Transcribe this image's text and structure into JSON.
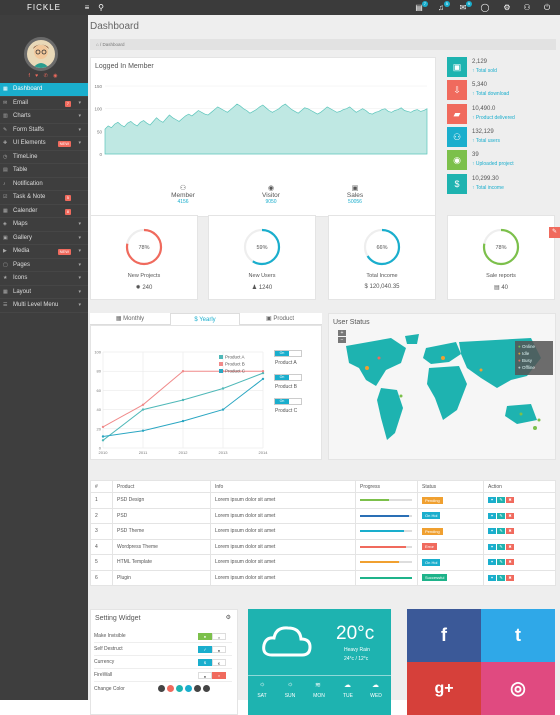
{
  "brand": "FICKLE",
  "topbar": {
    "badges": [
      "7",
      "5",
      "9"
    ]
  },
  "sidebar": {
    "items": [
      {
        "label": "Dashboard",
        "icon": "dashboard-icon",
        "active": true
      },
      {
        "label": "Email",
        "icon": "envelope-icon",
        "badge": "7",
        "arrow": true
      },
      {
        "label": "Charts",
        "icon": "bar-chart-icon",
        "arrow": true
      },
      {
        "label": "Form Staffs",
        "icon": "edit-icon",
        "arrow": true
      },
      {
        "label": "UI Elements",
        "icon": "puzzle-icon",
        "badge": "NEW",
        "arrow": true
      },
      {
        "label": "TimeLine",
        "icon": "timeline-icon"
      },
      {
        "label": "Table",
        "icon": "table-icon"
      },
      {
        "label": "Notification",
        "icon": "bell-icon"
      },
      {
        "label": "Task & Note",
        "icon": "tasks-icon",
        "badge": "5"
      },
      {
        "label": "Calender",
        "icon": "calendar-icon",
        "badge": "8"
      },
      {
        "label": "Maps",
        "icon": "map-icon",
        "arrow": true
      },
      {
        "label": "Gallery",
        "icon": "gallery-icon",
        "arrow": true
      },
      {
        "label": "Media",
        "icon": "media-icon",
        "badge": "NEW",
        "arrow": true
      },
      {
        "label": "Pages",
        "icon": "pages-icon",
        "arrow": true
      },
      {
        "label": "Icons",
        "icon": "icons-icon",
        "arrow": true
      },
      {
        "label": "Layout",
        "icon": "layout-icon",
        "arrow": true
      },
      {
        "label": "Multi Level Menu",
        "icon": "sitemap-icon",
        "arrow": true
      }
    ]
  },
  "page": {
    "title": "Dashboard",
    "breadcrumb": "Dashboard"
  },
  "logged_panel": {
    "title": "Logged In Member",
    "legend": [
      {
        "label": "Member",
        "value": "4156"
      },
      {
        "label": "Visitor",
        "value": "9050"
      },
      {
        "label": "Sales",
        "value": "50056"
      }
    ]
  },
  "chart_data": [
    {
      "type": "area",
      "title": "Logged In Member",
      "ylim": [
        0,
        150
      ],
      "yticks": [
        "150",
        "100",
        "50",
        "0"
      ],
      "values": [
        55,
        62,
        58,
        66,
        70,
        64,
        60,
        68,
        72,
        66,
        62,
        70,
        74,
        68,
        64,
        72,
        80,
        74,
        70,
        78,
        86,
        80,
        76,
        72,
        78,
        84,
        88,
        84,
        90,
        96,
        92,
        88,
        86,
        92,
        98,
        104,
        100,
        96,
        92,
        98,
        104,
        110,
        106,
        100,
        96,
        90,
        94,
        98,
        104,
        108,
        102,
        96,
        92,
        96,
        100,
        106,
        110,
        104,
        98,
        94,
        90,
        96,
        102,
        100,
        96,
        92,
        88,
        92,
        98,
        104,
        100,
        96,
        92,
        94,
        98,
        100,
        104,
        98,
        92,
        96,
        100,
        96,
        90,
        88,
        92,
        94,
        98,
        100,
        94,
        92,
        96,
        98,
        102,
        96,
        94,
        92,
        96,
        98,
        94,
        96,
        100
      ]
    },
    {
      "type": "line",
      "categories": [
        "2010",
        "2011",
        "2012",
        "2013",
        "2014"
      ],
      "ylim": [
        0,
        100
      ],
      "yticks": [
        "100",
        "80",
        "60",
        "40",
        "20",
        "0"
      ],
      "series": [
        {
          "name": "Product A",
          "color": "#4fb8b8",
          "values": [
            8,
            40,
            50,
            62,
            78
          ]
        },
        {
          "name": "Product B",
          "color": "#f08a8a",
          "values": [
            22,
            45,
            80,
            80,
            80
          ]
        },
        {
          "name": "Product C",
          "color": "#2aa6c2",
          "values": [
            12,
            18,
            28,
            40,
            72
          ]
        }
      ]
    }
  ],
  "stats": [
    {
      "value": "2,129",
      "label": "Total sold",
      "color": "#1eb3b0",
      "icon": "cart-icon"
    },
    {
      "value": "5,340",
      "label": "Total download",
      "color": "#f06a5d",
      "icon": "download-icon"
    },
    {
      "value": "10,490.0",
      "label": "Product delivered",
      "color": "#f06a5d",
      "icon": "truck-icon"
    },
    {
      "value": "132,129",
      "label": "Total users",
      "color": "#1aaecd",
      "icon": "users-icon"
    },
    {
      "value": "39",
      "label": "Uploaded project",
      "color": "#7cc04b",
      "icon": "github-icon"
    },
    {
      "value": "10,299.30",
      "label": "Total income",
      "color": "#1eb3b0",
      "icon": "dollar-icon"
    }
  ],
  "donuts": [
    {
      "label": "New Projects",
      "value": "240",
      "percent": 78,
      "pct_text": "78%",
      "color": "#f06a5d",
      "icon": "fire-icon"
    },
    {
      "label": "New Users",
      "value": "1240",
      "percent": 59,
      "pct_text": "59%",
      "color": "#1aaecd",
      "icon": "user-icon"
    },
    {
      "label": "Total Income",
      "value": "120,040.35",
      "percent": 66,
      "pct_text": "66%",
      "color": "#1aaecd",
      "icon": "dollar-icon"
    },
    {
      "label": "Sale reports",
      "value": "40",
      "percent": 78,
      "pct_text": "78%",
      "color": "#7cc04b",
      "icon": "file-icon"
    }
  ],
  "tabs": [
    "Monthly",
    "Yearly",
    "Product"
  ],
  "product_toggles": [
    {
      "on": "On",
      "label": "Product A"
    },
    {
      "on": "On",
      "label": "Product B"
    },
    {
      "on": "On",
      "label": "Product C"
    }
  ],
  "map_panel": {
    "title": "User Status",
    "legend": [
      "Online",
      "Idle",
      "Busy",
      "Offline"
    ],
    "zoom_in": "+",
    "zoom_out": "−"
  },
  "table": {
    "headers": [
      "#",
      "Product",
      "Info",
      "Progress",
      "Status",
      "Action"
    ],
    "rows": [
      {
        "num": "1",
        "product": "PSD Design",
        "info": "Lorem ipsum dolor sit amet",
        "progress": 0.55,
        "pcolor": "#7cc04b",
        "status": "Pending",
        "scolor": "#f0a030"
      },
      {
        "num": "2",
        "product": "PSD",
        "info": "Lorem ipsum dolor sit amet",
        "progress": 0.95,
        "pcolor": "#2a6fb5",
        "status": "On Hol",
        "scolor": "#1aaecd"
      },
      {
        "num": "3",
        "product": "PSD Theme",
        "info": "Lorem ipsum dolor sit amet",
        "progress": 0.85,
        "pcolor": "#1aaecd",
        "status": "Pending",
        "scolor": "#f0a030"
      },
      {
        "num": "4",
        "product": "Wordpress Theme",
        "info": "Lorem ipsum dolor sit amet",
        "progress": 0.88,
        "pcolor": "#f06a5d",
        "status": "Error",
        "scolor": "#f06a5d"
      },
      {
        "num": "5",
        "product": "HTML Template",
        "info": "Lorem ipsum dolor sit amet",
        "progress": 0.75,
        "pcolor": "#f0a030",
        "status": "On Hol",
        "scolor": "#1aaecd"
      },
      {
        "num": "6",
        "product": "Plugin",
        "info": "Lorem ipsum dolor sit amet",
        "progress": 1.0,
        "pcolor": "#1eb38a",
        "status": "Successful",
        "scolor": "#1eb38a"
      }
    ]
  },
  "settings": {
    "title": "Setting Widget",
    "rows": [
      "Make Invisible",
      "Self Destruct",
      "Currency",
      "FireWall"
    ],
    "currency_a": "$",
    "currency_b": "€",
    "change_color": "Change Color",
    "swatches": [
      "#444444",
      "#f06a5d",
      "#1eb3b0",
      "#1aaecd",
      "#444444",
      "#444444"
    ]
  },
  "weather": {
    "temp": "20°c",
    "desc": "Heavy Rain",
    "range": "24°c / 12°c",
    "days": [
      "SAT",
      "SUN",
      "MON",
      "TUE",
      "WED"
    ]
  },
  "social": [
    {
      "name": "facebook",
      "glyph": "f",
      "color": "#3b5998"
    },
    {
      "name": "twitter",
      "glyph": "t",
      "color": "#2fa8e8"
    },
    {
      "name": "google-plus",
      "glyph": "g+",
      "color": "#d6403a"
    },
    {
      "name": "dribbble",
      "glyph": "◎",
      "color": "#e04a80"
    }
  ]
}
